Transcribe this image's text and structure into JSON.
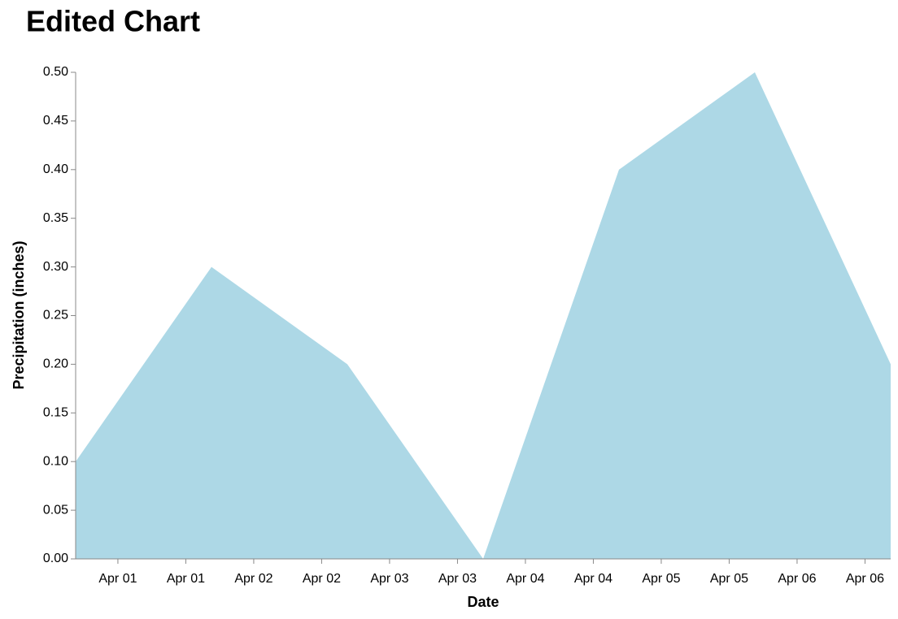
{
  "chart_data": {
    "type": "area",
    "title": "Edited Chart",
    "x_label": "Date",
    "y_label": "Precipitation (inches)",
    "x": [
      0,
      1,
      2,
      3,
      4,
      5,
      6
    ],
    "series": [
      {
        "name": "Precipitation",
        "color": "#add8e6",
        "values": [
          0.1,
          0.3,
          0.2,
          0,
          0.4,
          0.5,
          0.2
        ]
      }
    ],
    "xlim": [
      0,
      6
    ],
    "xticks": [
      {
        "value": 0.311,
        "label": "Apr 01"
      },
      {
        "value": 0.811,
        "label": "Apr 01"
      },
      {
        "value": 1.311,
        "label": "Apr 02"
      },
      {
        "value": 1.811,
        "label": "Apr 02"
      },
      {
        "value": 2.311,
        "label": "Apr 03"
      },
      {
        "value": 2.811,
        "label": "Apr 03"
      },
      {
        "value": 3.311,
        "label": "Apr 04"
      },
      {
        "value": 3.811,
        "label": "Apr 04"
      },
      {
        "value": 4.311,
        "label": "Apr 05"
      },
      {
        "value": 4.811,
        "label": "Apr 05"
      },
      {
        "value": 5.311,
        "label": "Apr 06"
      },
      {
        "value": 5.811,
        "label": "Apr 06"
      }
    ],
    "ylim": [
      0,
      0.5
    ],
    "yticks": [
      {
        "value": 0,
        "label": "0.00"
      },
      {
        "value": 0.05,
        "label": "0.05"
      },
      {
        "value": 0.1,
        "label": "0.10"
      },
      {
        "value": 0.15,
        "label": "0.15"
      },
      {
        "value": 0.2,
        "label": "0.20"
      },
      {
        "value": 0.25,
        "label": "0.25"
      },
      {
        "value": 0.3,
        "label": "0.30"
      },
      {
        "value": 0.35,
        "label": "0.35"
      },
      {
        "value": 0.4,
        "label": "0.40"
      },
      {
        "value": 0.45,
        "label": "0.45"
      },
      {
        "value": 0.5,
        "label": "0.50"
      }
    ],
    "grid": false
  }
}
